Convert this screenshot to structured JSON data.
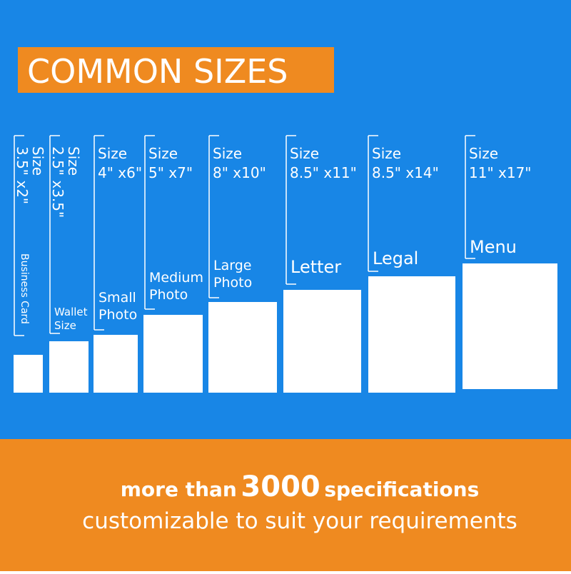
{
  "header": {
    "title": "COMMON SIZES"
  },
  "items": [
    {
      "size_label": "Size",
      "size": "3.5\" x2\"",
      "name": [
        "Business Card"
      ]
    },
    {
      "size_label": "Size",
      "size": "2.5\" x3.5\"",
      "name": [
        "Wallet",
        "Size"
      ]
    },
    {
      "size_label": "Size",
      "size": "4\" x6\"",
      "name": [
        "Small",
        "Photo"
      ]
    },
    {
      "size_label": "Size",
      "size": "5\" x7\"",
      "name": [
        "Medium",
        "Photo"
      ]
    },
    {
      "size_label": "Size",
      "size": "8\" x10\"",
      "name": [
        "Large",
        "Photo"
      ]
    },
    {
      "size_label": "Size",
      "size": "8.5\" x11\"",
      "name": [
        "Letter"
      ]
    },
    {
      "size_label": "Size",
      "size": "8.5\" x14\"",
      "name": [
        "Legal"
      ]
    },
    {
      "size_label": "Size",
      "size": "11\" x17\"",
      "name": [
        "Menu"
      ]
    }
  ],
  "footer": {
    "line1_pre": "more than",
    "line1_number": "3000",
    "line1_post": "specifications",
    "line2": "customizable to suit your requirements"
  }
}
